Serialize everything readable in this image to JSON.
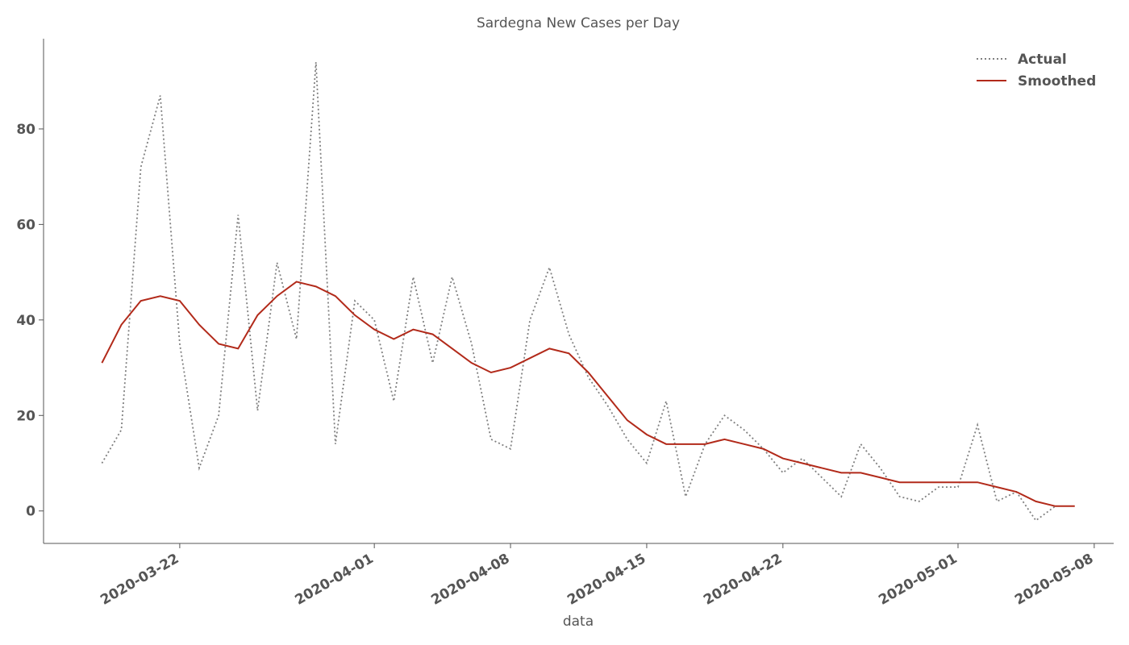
{
  "chart_data": {
    "type": "line",
    "title": "Sardegna New Cases per Day",
    "x_label": "data",
    "x": [
      "2020-03-18",
      "2020-03-19",
      "2020-03-20",
      "2020-03-21",
      "2020-03-22",
      "2020-03-23",
      "2020-03-24",
      "2020-03-25",
      "2020-03-26",
      "2020-03-27",
      "2020-03-28",
      "2020-03-29",
      "2020-03-30",
      "2020-03-31",
      "2020-04-01",
      "2020-04-02",
      "2020-04-03",
      "2020-04-04",
      "2020-04-05",
      "2020-04-06",
      "2020-04-07",
      "2020-04-08",
      "2020-04-09",
      "2020-04-10",
      "2020-04-11",
      "2020-04-12",
      "2020-04-13",
      "2020-04-14",
      "2020-04-15",
      "2020-04-16",
      "2020-04-17",
      "2020-04-18",
      "2020-04-19",
      "2020-04-20",
      "2020-04-21",
      "2020-04-22",
      "2020-04-23",
      "2020-04-24",
      "2020-04-25",
      "2020-04-26",
      "2020-04-27",
      "2020-04-28",
      "2020-04-29",
      "2020-04-30",
      "2020-05-01",
      "2020-05-02",
      "2020-05-03",
      "2020-05-04",
      "2020-05-05",
      "2020-05-06",
      "2020-05-07"
    ],
    "series": [
      {
        "name": "Actual",
        "color": "#808080",
        "dash": "dotted",
        "values": [
          10,
          17,
          72,
          87,
          35,
          9,
          20,
          62,
          21,
          52,
          36,
          94,
          14,
          44,
          40,
          23,
          49,
          31,
          49,
          35,
          15,
          13,
          40,
          51,
          37,
          28,
          22,
          15,
          10,
          23,
          3,
          14,
          20,
          17,
          13,
          8,
          11,
          7,
          3,
          14,
          9,
          3,
          2,
          5,
          5,
          18,
          2,
          4,
          -2,
          1,
          null
        ]
      },
      {
        "name": "Smoothed",
        "color": "#b22a1a",
        "dash": "solid",
        "values": [
          31,
          39,
          44,
          45,
          44,
          39,
          35,
          34,
          41,
          45,
          48,
          47,
          45,
          41,
          38,
          36,
          38,
          37,
          34,
          31,
          29,
          30,
          32,
          34,
          33,
          29,
          24,
          19,
          16,
          14,
          14,
          14,
          15,
          14,
          13,
          11,
          10,
          9,
          8,
          8,
          7,
          6,
          6,
          6,
          6,
          6,
          5,
          4,
          2,
          1,
          1
        ]
      }
    ],
    "xlim": [
      "2020-03-15",
      "2020-05-09"
    ],
    "xticks": [
      "2020-03-22",
      "2020-04-01",
      "2020-04-08",
      "2020-04-15",
      "2020-04-22",
      "2020-05-01",
      "2020-05-08"
    ],
    "ylim": [
      -6.8,
      98.9
    ],
    "yticks": [
      0,
      20,
      40,
      60,
      80
    ],
    "grid": false,
    "legend": "upper right"
  }
}
